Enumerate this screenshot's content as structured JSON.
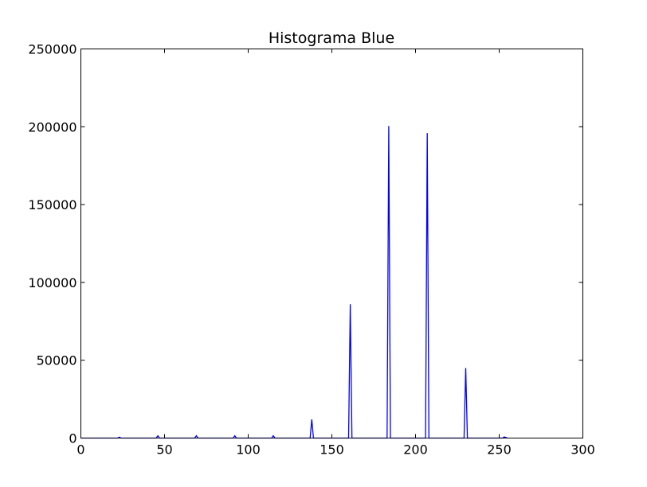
{
  "chart_data": {
    "type": "line",
    "title": "Histograma Blue",
    "xlabel": "",
    "ylabel": "",
    "xlim": [
      0,
      300
    ],
    "ylim": [
      0,
      250000
    ],
    "x_ticks": [
      0,
      50,
      100,
      150,
      200,
      250,
      300
    ],
    "y_ticks": [
      0,
      50000,
      100000,
      150000,
      200000,
      250000
    ],
    "grid": false,
    "legend": "none",
    "series": [
      {
        "color": "#0000ff",
        "points": [
          [
            0,
            0
          ],
          [
            22,
            0
          ],
          [
            23,
            600
          ],
          [
            24,
            0
          ],
          [
            45,
            0
          ],
          [
            46,
            1500
          ],
          [
            47,
            0
          ],
          [
            68,
            0
          ],
          [
            69,
            1500
          ],
          [
            70,
            0
          ],
          [
            91,
            0
          ],
          [
            92,
            1500
          ],
          [
            93,
            0
          ],
          [
            114,
            0
          ],
          [
            115,
            1500
          ],
          [
            116,
            0
          ],
          [
            137,
            0
          ],
          [
            138,
            12000
          ],
          [
            139,
            0
          ],
          [
            160,
            0
          ],
          [
            161,
            86000
          ],
          [
            162,
            0
          ],
          [
            183,
            0
          ],
          [
            184,
            200500
          ],
          [
            185,
            0
          ],
          [
            206,
            0
          ],
          [
            207,
            196000
          ],
          [
            208,
            0
          ],
          [
            229,
            0
          ],
          [
            230,
            45000
          ],
          [
            231,
            0
          ],
          [
            252,
            0
          ],
          [
            253,
            700
          ],
          [
            255,
            0
          ]
        ]
      }
    ]
  }
}
